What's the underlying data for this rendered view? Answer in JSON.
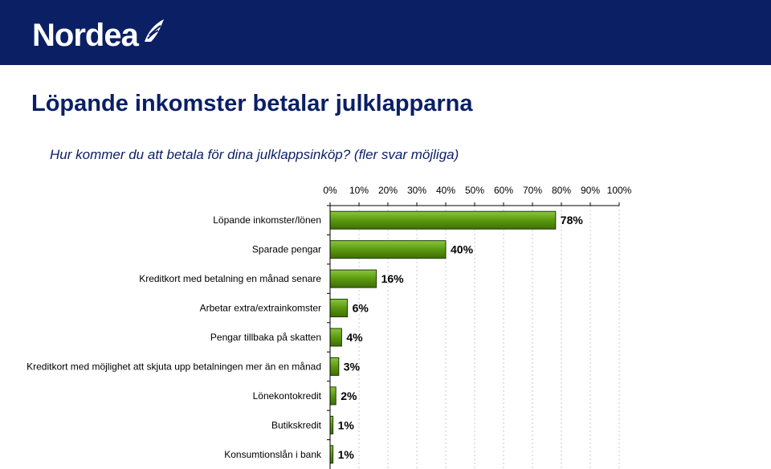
{
  "header": {
    "logo_text": "Nordea",
    "background_color": "#0b1f65",
    "logo_icon": "sail-icon"
  },
  "page": {
    "title": "Löpande inkomster betalar julklapparna",
    "subtitle": "Hur kommer du att betala för dina julklappsinköp? (fler svar möjliga)"
  },
  "chart_data": {
    "type": "bar",
    "orientation": "horizontal",
    "categories": [
      "Löpande inkomster/lönen",
      "Sparade pengar",
      "Kreditkort med betalning en månad senare",
      "Arbetar extra/extrainkomster",
      "Pengar tillbaka på skatten",
      "Kreditkort med möjlighet att skjuta upp betalningen mer än en månad",
      "Lönekontokredit",
      "Butikskredit",
      "Konsumtionslån i bank"
    ],
    "values": [
      78,
      40,
      16,
      6,
      4,
      3,
      2,
      1,
      1
    ],
    "data_labels": [
      "78%",
      "40%",
      "16%",
      "6%",
      "4%",
      "3%",
      "2%",
      "1%",
      "1%"
    ],
    "xlim": [
      0,
      100
    ],
    "x_ticks": [
      0,
      10,
      20,
      30,
      40,
      50,
      60,
      70,
      80,
      90,
      100
    ],
    "x_tick_labels": [
      "0%",
      "10%",
      "20%",
      "30%",
      "40%",
      "50%",
      "60%",
      "70%",
      "80%",
      "90%",
      "100%"
    ],
    "x_axis_position": "top",
    "grid": "vertical dashed",
    "bar_color": "#5a9a0e",
    "bar_highlight_color": "#8cc63f"
  }
}
